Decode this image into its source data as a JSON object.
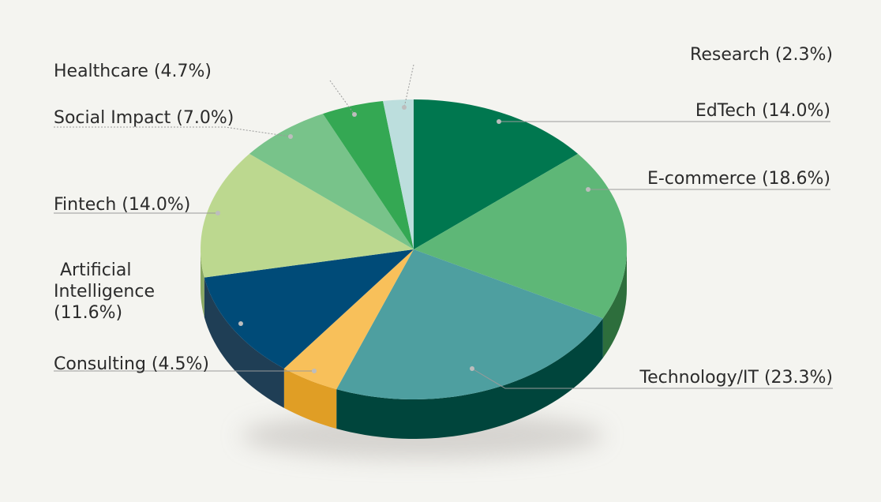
{
  "chart_data": {
    "type": "pie",
    "title": "",
    "slices": [
      {
        "label": "EdTech (14.0%)",
        "value": 14.0,
        "color": "#00774f",
        "side": "#0f5a38"
      },
      {
        "label": "E-commerce (18.6%)",
        "value": 18.6,
        "color": "#5eb777",
        "side": "#2d6e3c"
      },
      {
        "label": "Technology/IT (23.3%)",
        "value": 23.3,
        "color": "#4e9fa0",
        "side": "#00453c"
      },
      {
        "label": "Consulting (4.5%)",
        "value": 4.5,
        "color": "#f8c05a",
        "side": "#e09e25"
      },
      {
        "label": "Artificial Intelligence (11.6%)",
        "label_lines": [
          "Artificial",
          "Intelligence",
          "(11.6%)"
        ],
        "value": 11.6,
        "color": "#004b78",
        "side": "#1f3e55"
      },
      {
        "label": "Fintech (14.0%)",
        "value": 14.0,
        "color": "#bcd88f",
        "side": "#8aa863"
      },
      {
        "label": "Social Impact (7.0%)",
        "value": 7.0,
        "color": "#78c38a",
        "side": "#4e9460"
      },
      {
        "label": "Healthcare (4.7%)",
        "value": 4.7,
        "color": "#34a853",
        "side": "#1f7a3a"
      },
      {
        "label": "Research (2.3%)",
        "value": 2.3,
        "color": "#bcdedd",
        "side": "#8ab7b4"
      }
    ]
  }
}
